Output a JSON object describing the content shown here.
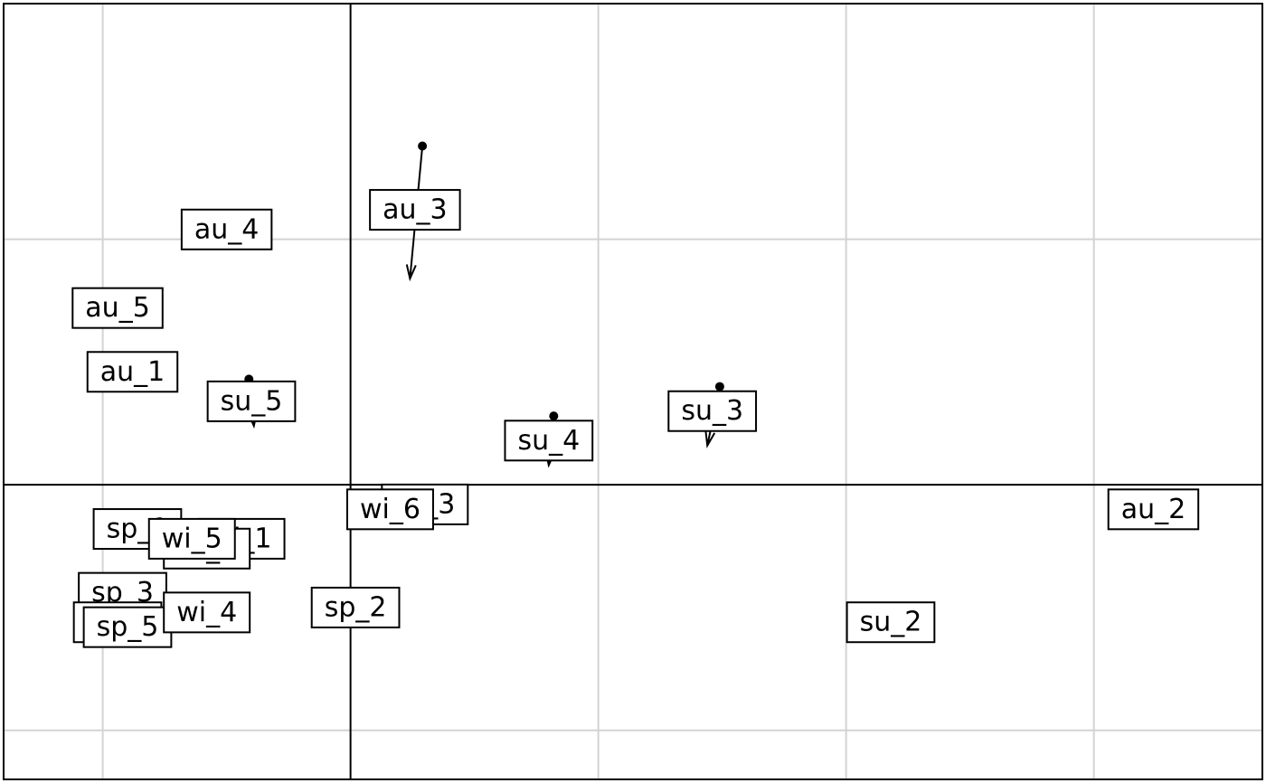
{
  "chart_data": {
    "type": "scatter",
    "title": "",
    "xlabel": "",
    "ylabel": "",
    "xlim": [
      -0.7,
      1.84
    ],
    "ylim": [
      -0.6,
      0.98
    ],
    "grid": true,
    "legend": "none",
    "grid_x": [
      -0.5,
      0.5,
      1.0,
      1.5
    ],
    "grid_y": [
      -0.5,
      0.5
    ],
    "axes_lines": {
      "x": 0,
      "y": 0
    },
    "points": [
      {
        "label": "au_1",
        "x": -0.44,
        "y": 0.23
      },
      {
        "label": "au_2",
        "x": 1.62,
        "y": -0.05
      },
      {
        "label": "au_3",
        "x": 0.13,
        "y": 0.56
      },
      {
        "label": "au_4",
        "x": -0.25,
        "y": 0.52
      },
      {
        "label": "au_5",
        "x": -0.47,
        "y": 0.36
      },
      {
        "label": "su_2",
        "x": 1.09,
        "y": -0.28
      },
      {
        "label": "su_3",
        "x": 0.73,
        "y": 0.15
      },
      {
        "label": "su_4",
        "x": 0.4,
        "y": 0.09
      },
      {
        "label": "su_5",
        "x": -0.2,
        "y": 0.17
      },
      {
        "label": "sp_1",
        "x": -0.43,
        "y": -0.09
      },
      {
        "label": "sp_2",
        "x": 0.01,
        "y": -0.25
      },
      {
        "label": "sp_3",
        "x": -0.46,
        "y": -0.22
      },
      {
        "label": "sp_4",
        "x": -0.47,
        "y": -0.28
      },
      {
        "label": "sp_5",
        "x": -0.45,
        "y": -0.29
      },
      {
        "label": "wi_1",
        "x": -0.22,
        "y": -0.11
      },
      {
        "label": "wi_2",
        "x": -0.29,
        "y": -0.13
      },
      {
        "label": "wi_3",
        "x": 0.15,
        "y": -0.04
      },
      {
        "label": "wi_4",
        "x": -0.29,
        "y": -0.26
      },
      {
        "label": "wi_5",
        "x": -0.32,
        "y": -0.11
      },
      {
        "label": "wi_6",
        "x": 0.08,
        "y": -0.05
      }
    ],
    "arrows": [
      {
        "label": "au_3",
        "from": [
          0.145,
          0.69
        ],
        "to": [
          0.12,
          0.42
        ]
      },
      {
        "label": "su_3",
        "from": [
          0.745,
          0.2
        ],
        "to": [
          0.72,
          0.08
        ]
      },
      {
        "label": "su_4",
        "from": [
          0.41,
          0.14
        ],
        "to": [
          0.4,
          0.04
        ]
      },
      {
        "label": "su_5",
        "from": [
          -0.205,
          0.215
        ],
        "to": [
          -0.195,
          0.12
        ]
      }
    ]
  }
}
